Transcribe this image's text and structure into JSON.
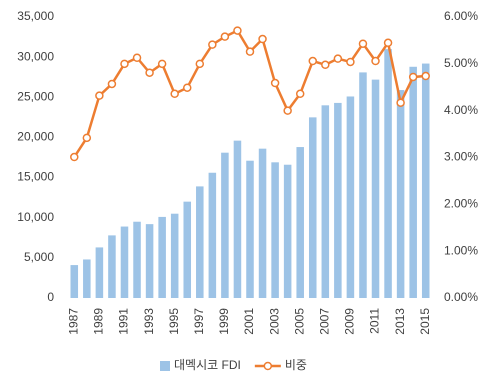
{
  "chart_data": {
    "type": "bar-line",
    "categories": [
      "1987",
      null,
      "1989",
      null,
      "1991",
      null,
      "1993",
      null,
      "1995",
      null,
      "1997",
      null,
      "1999",
      null,
      "2001",
      null,
      "2003",
      null,
      "2005",
      null,
      "2007",
      null,
      "2009",
      null,
      "2011",
      null,
      "2013",
      null,
      "2015"
    ],
    "series": [
      {
        "name": "대멕시코 FDI",
        "type": "bar",
        "color": "#9dc3e6",
        "values": [
          4100,
          4800,
          6300,
          7800,
          8900,
          9500,
          9200,
          10100,
          10500,
          12000,
          13900,
          15600,
          18100,
          19600,
          17100,
          18600,
          16900,
          16600,
          18800,
          22500,
          24000,
          24300,
          25100,
          28100,
          27200,
          31000,
          25900,
          28800,
          29200
        ]
      },
      {
        "name": "비중",
        "type": "line",
        "axis": "y2",
        "color": "#ed7d31",
        "values": [
          3.01,
          3.42,
          4.32,
          4.57,
          5.0,
          5.13,
          4.81,
          5.0,
          4.36,
          4.49,
          5.0,
          5.41,
          5.58,
          5.71,
          5.26,
          5.53,
          4.59,
          4.0,
          4.36,
          5.06,
          4.98,
          5.11,
          5.04,
          5.43,
          5.06,
          5.45,
          4.17,
          4.72,
          4.74
        ]
      }
    ],
    "ylim": [
      0,
      35000
    ],
    "yticks": [
      0,
      {
        "value": 5000,
        "label": "5,000"
      },
      {
        "value": 10000,
        "label": "10,000"
      },
      {
        "value": 15000,
        "label": "15,000"
      },
      {
        "value": 20000,
        "label": "20,000"
      },
      {
        "value": 25000,
        "label": "25,000"
      },
      {
        "value": 30000,
        "label": "30,000"
      },
      {
        "value": 35000,
        "label": "35,000"
      }
    ],
    "y2lim": [
      0,
      6
    ],
    "y2ticks": [
      {
        "value": 0,
        "label": "0.00%"
      },
      {
        "value": 1,
        "label": "1.00%"
      },
      {
        "value": 2,
        "label": "2.00%"
      },
      {
        "value": 3,
        "label": "3.00%"
      },
      {
        "value": 4,
        "label": "4.00%"
      },
      {
        "value": 5,
        "label": "5.00%"
      },
      {
        "value": 6,
        "label": "6.00%"
      }
    ],
    "grid": false,
    "legend": "bottom"
  }
}
